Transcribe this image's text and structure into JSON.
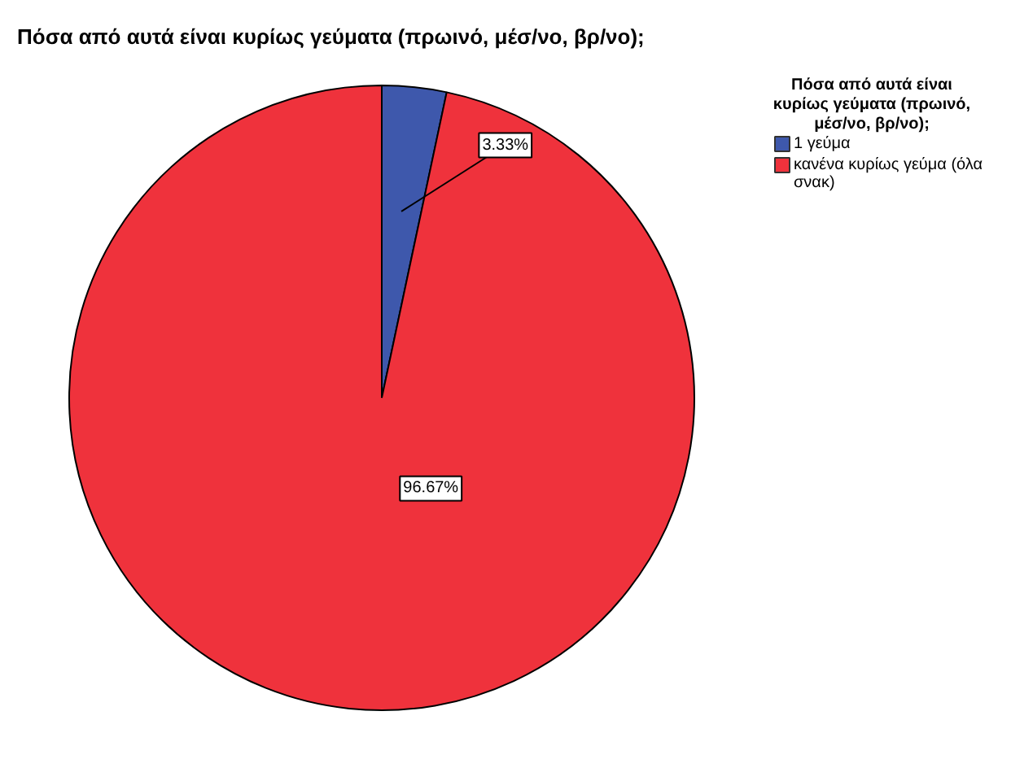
{
  "chart_data": {
    "type": "pie",
    "title": "Πόσα από αυτά είναι κυρίως γεύματα (πρωινό, μέσ/νο, βρ/νο);",
    "legend_title": "Πόσα από αυτά είναι κυρίως γεύματα (πρωινό, μέσ/νο, βρ/νο);",
    "categories": [
      "1 γεύμα",
      "κανένα κυρίως γεύμα (όλα σνακ)"
    ],
    "values": [
      3.33,
      96.67
    ],
    "colors": [
      "#3e58ac",
      "#ef323c"
    ],
    "value_labels": [
      "3.33%",
      "96.67%"
    ],
    "legend": "top right"
  }
}
